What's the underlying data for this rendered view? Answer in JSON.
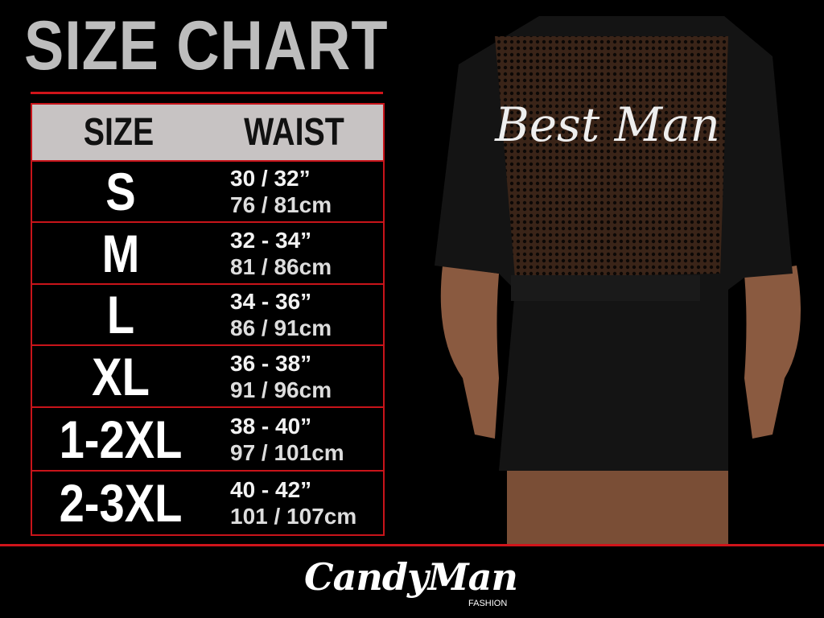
{
  "title": "SIZE CHART",
  "table": {
    "headers": [
      "SIZE",
      "WAIST"
    ],
    "rows": [
      {
        "size": "S",
        "inches": "30 / 32”",
        "cm": "76 / 81cm"
      },
      {
        "size": "M",
        "inches": "32 - 34”",
        "cm": "81 / 86cm"
      },
      {
        "size": "L",
        "inches": "34 - 36”",
        "cm": "86 / 91cm"
      },
      {
        "size": "XL",
        "inches": "36 - 38”",
        "cm": "91 / 96cm"
      },
      {
        "size": "1-2XL",
        "inches": "38 - 40”",
        "cm": "97 / 101cm"
      },
      {
        "size": "2-3XL",
        "inches": "40 - 42”",
        "cm": "101 / 107cm"
      }
    ]
  },
  "garment_print": "Best Man",
  "brand": {
    "name": "CandyMan",
    "sub": "FASHION"
  },
  "colors": {
    "accent": "#d0141a",
    "header_bg": "#c7c3c3",
    "title": "#bdbdbd"
  }
}
